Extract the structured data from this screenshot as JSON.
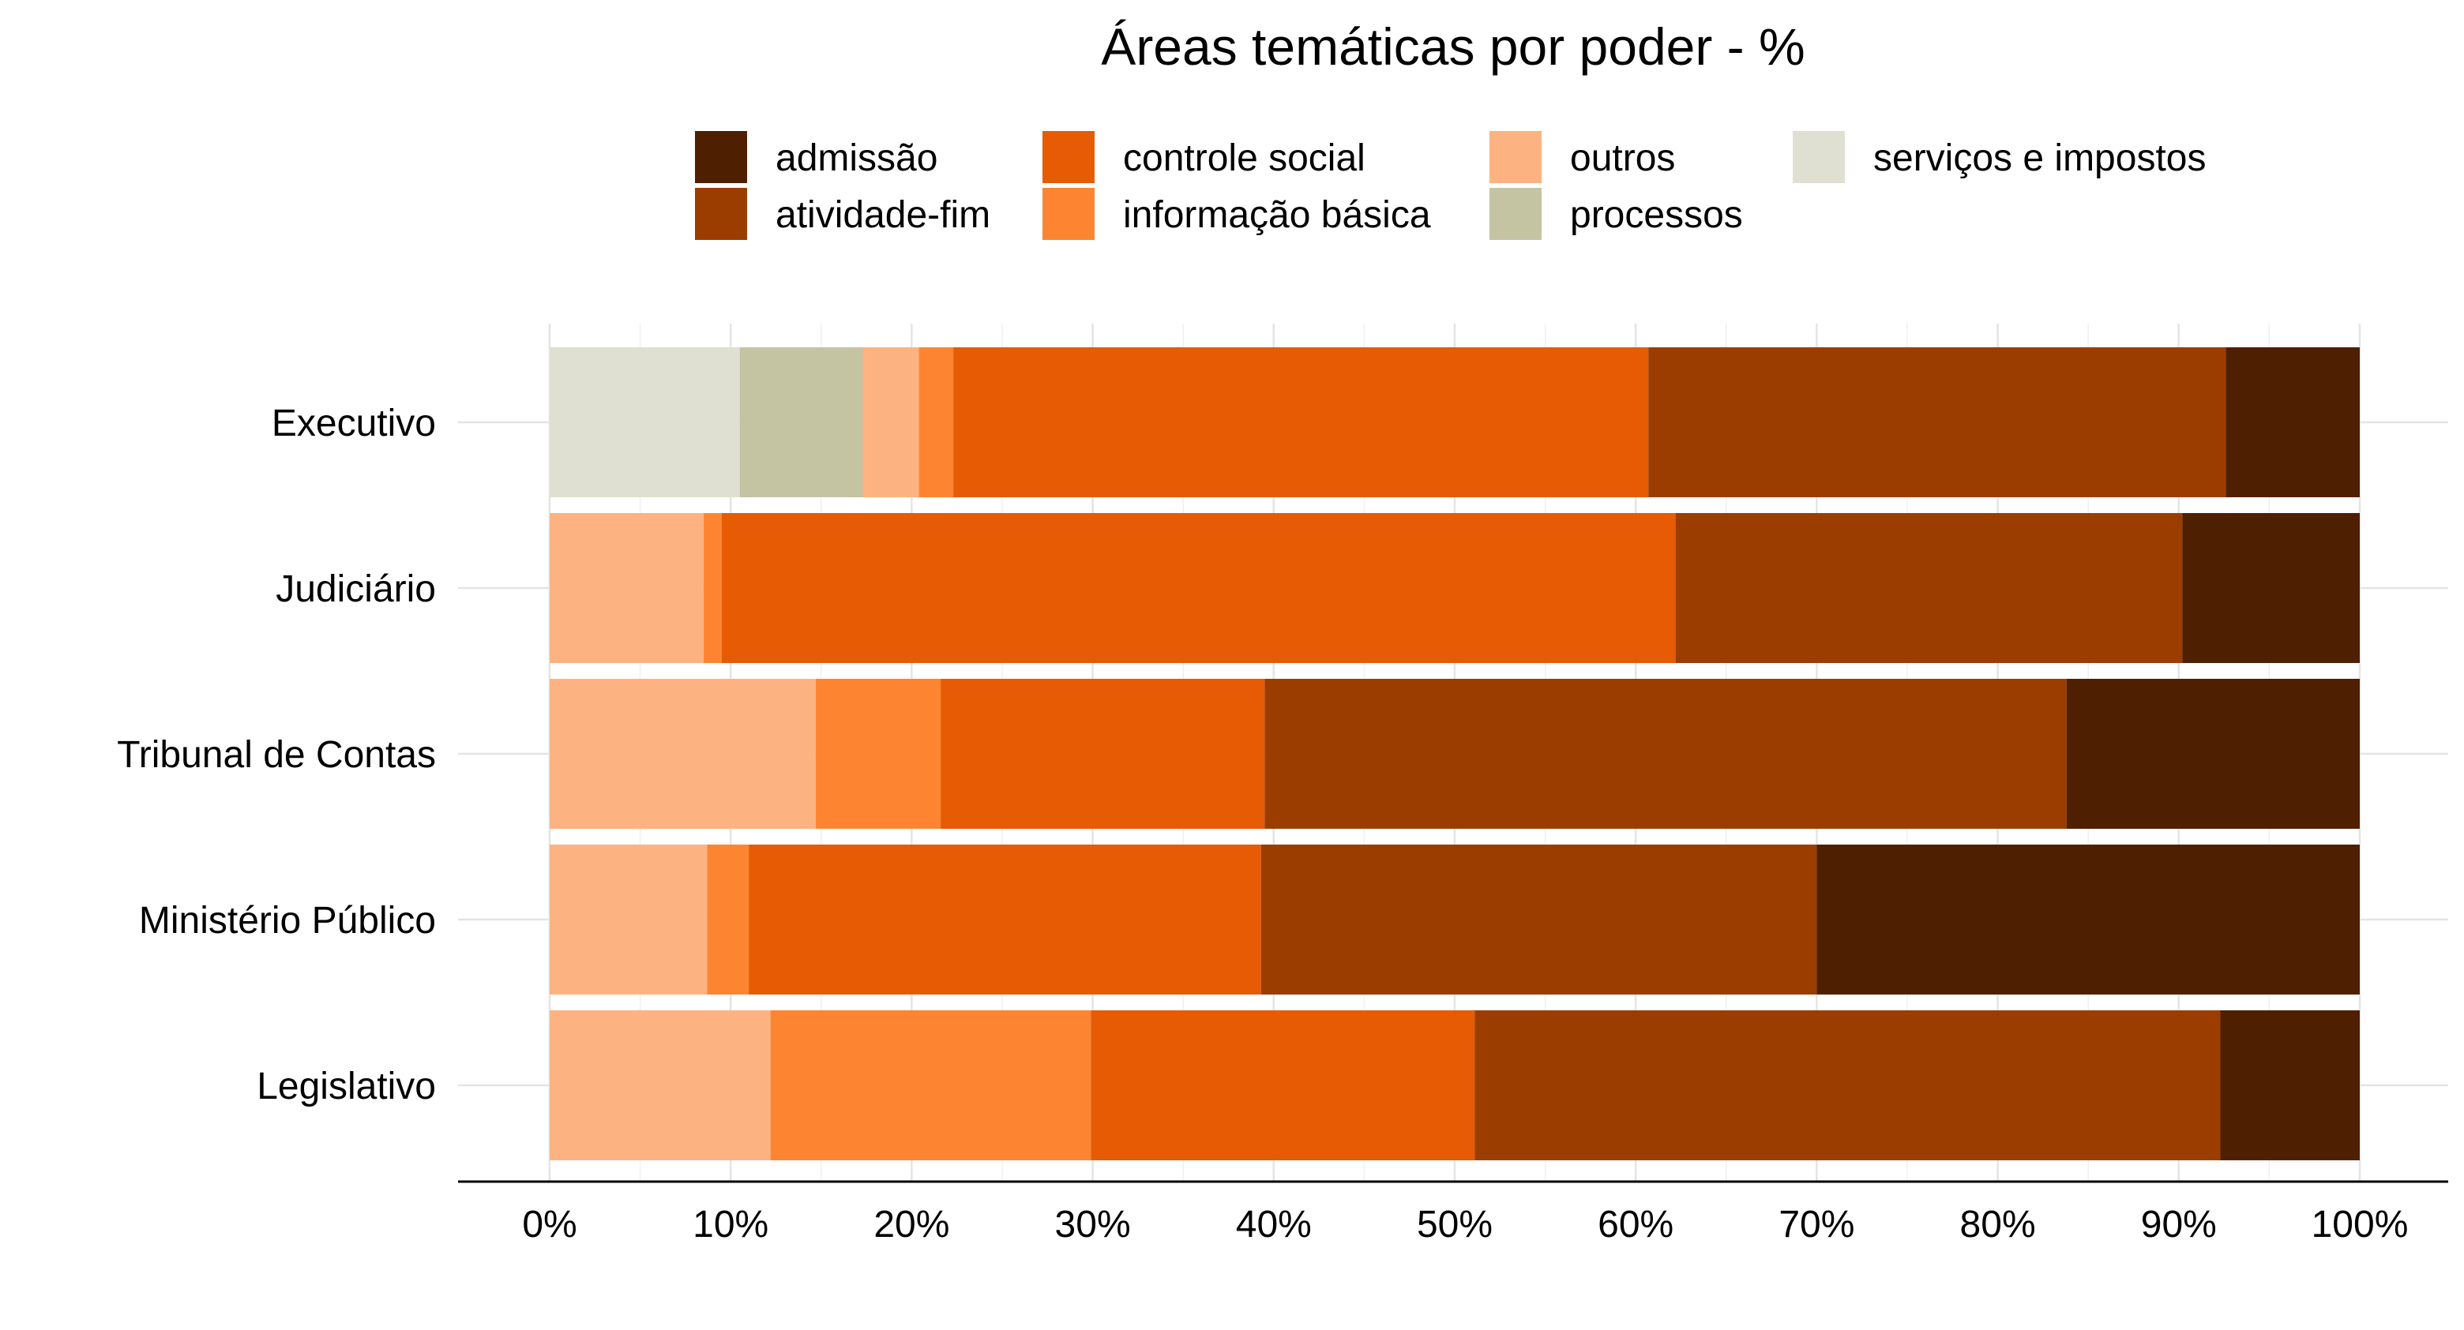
{
  "chart_data": {
    "type": "bar",
    "orientation": "horizontal",
    "stacked": true,
    "title": "Áreas temáticas por poder - %",
    "categories": [
      "Executivo",
      "Judiciário",
      "Tribunal de Contas",
      "Ministério Público",
      "Legislativo"
    ],
    "series": [
      {
        "name": "serviços e impostos",
        "color": "#dfe0d1",
        "values": [
          10.5,
          0,
          0,
          0,
          0
        ]
      },
      {
        "name": "processos",
        "color": "#c4c4a3",
        "values": [
          6.8,
          0,
          0,
          0,
          0
        ]
      },
      {
        "name": "outros",
        "color": "#fdb381",
        "values": [
          3.1,
          8.5,
          14.7,
          8.7,
          12.2
        ]
      },
      {
        "name": "informação básica",
        "color": "#fd8532",
        "values": [
          1.9,
          1.0,
          6.9,
          2.3,
          17.7
        ]
      },
      {
        "name": "controle social",
        "color": "#e65b03",
        "values": [
          38.4,
          52.7,
          17.9,
          28.3,
          21.2
        ]
      },
      {
        "name": "atividade-fim",
        "color": "#9c3d00",
        "values": [
          31.9,
          28.0,
          44.3,
          30.7,
          41.2
        ]
      },
      {
        "name": "admissão",
        "color": "#4f1f02",
        "values": [
          7.4,
          9.8,
          16.2,
          30.0,
          7.7
        ]
      }
    ],
    "legend_order": [
      "admissão",
      "atividade-fim",
      "controle social",
      "informação básica",
      "outros",
      "processos",
      "serviços e impostos"
    ],
    "legend_position": "top",
    "x_ticks": [
      "0%",
      "10%",
      "20%",
      "30%",
      "40%",
      "50%",
      "60%",
      "70%",
      "80%",
      "90%",
      "100%"
    ],
    "xlim": [
      0,
      100
    ],
    "grid": true
  }
}
